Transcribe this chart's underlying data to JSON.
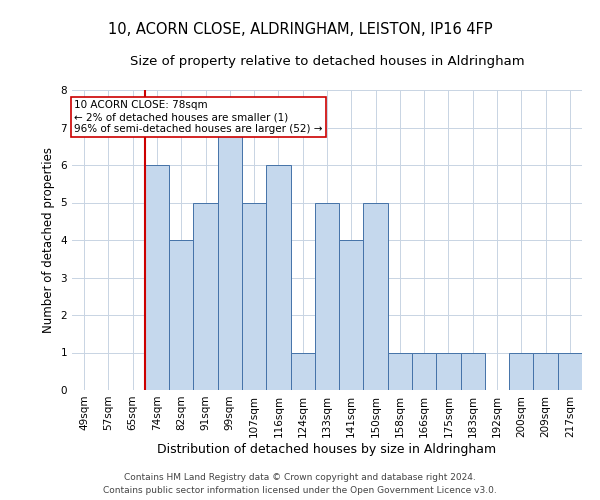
{
  "title_line1": "10, ACORN CLOSE, ALDRINGHAM, LEISTON, IP16 4FP",
  "title_line2": "Size of property relative to detached houses in Aldringham",
  "xlabel": "Distribution of detached houses by size in Aldringham",
  "ylabel": "Number of detached properties",
  "bar_labels": [
    "49sqm",
    "57sqm",
    "65sqm",
    "74sqm",
    "82sqm",
    "91sqm",
    "99sqm",
    "107sqm",
    "116sqm",
    "124sqm",
    "133sqm",
    "141sqm",
    "150sqm",
    "158sqm",
    "166sqm",
    "175sqm",
    "183sqm",
    "192sqm",
    "200sqm",
    "209sqm",
    "217sqm"
  ],
  "bar_values": [
    0,
    0,
    0,
    6,
    4,
    5,
    7,
    5,
    6,
    1,
    5,
    4,
    5,
    1,
    1,
    1,
    1,
    0,
    1,
    1,
    1
  ],
  "bar_color": "#c5d8ed",
  "bar_edge_color": "#4472a8",
  "vline_bar_index": 3,
  "vline_color": "#cc0000",
  "annotation_text": "10 ACORN CLOSE: 78sqm\n← 2% of detached houses are smaller (1)\n96% of semi-detached houses are larger (52) →",
  "annotation_box_color": "#ffffff",
  "annotation_box_edge_color": "#cc0000",
  "ylim": [
    0,
    8
  ],
  "yticks": [
    0,
    1,
    2,
    3,
    4,
    5,
    6,
    7,
    8
  ],
  "footer_line1": "Contains HM Land Registry data © Crown copyright and database right 2024.",
  "footer_line2": "Contains public sector information licensed under the Open Government Licence v3.0.",
  "background_color": "#ffffff",
  "grid_color": "#c8d4e3",
  "title_fontsize": 10.5,
  "subtitle_fontsize": 9.5,
  "xlabel_fontsize": 9,
  "ylabel_fontsize": 8.5,
  "tick_fontsize": 7.5,
  "annot_fontsize": 7.5,
  "footer_fontsize": 6.5
}
